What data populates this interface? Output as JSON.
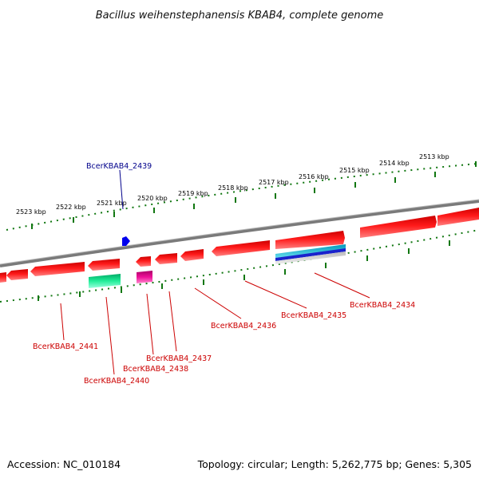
{
  "title": "Bacillus weihenstephanensis KBAB4, complete genome",
  "footer": {
    "accession": "Accession: NC_010184",
    "summary": "Topology: circular; Length: 5,262,775 bp; Genes: 5,305"
  },
  "scale": {
    "unit": "kbp",
    "tick_labels": [
      "2523 kbp",
      "2522 kbp",
      "2521 kbp",
      "2520 kbp",
      "2519 kbp",
      "2518 kbp",
      "2517 kbp",
      "2516 kbp",
      "2515 kbp",
      "2514 kbp",
      "2513 kbp"
    ]
  },
  "gene_labels": [
    {
      "name": "BcerKBAB4_2439",
      "color": "#00008b"
    },
    {
      "name": "BcerKBAB4_2441",
      "color": "#cc0000"
    },
    {
      "name": "BcerKBAB4_2440",
      "color": "#cc0000"
    },
    {
      "name": "BcerKBAB4_2438",
      "color": "#cc0000"
    },
    {
      "name": "BcerKBAB4_2437",
      "color": "#cc0000"
    },
    {
      "name": "BcerKBAB4_2436",
      "color": "#cc0000"
    },
    {
      "name": "BcerKBAB4_2435",
      "color": "#cc0000"
    },
    {
      "name": "BcerKBAB4_2434",
      "color": "#cc0000"
    }
  ],
  "colors": {
    "cds": "#ee1111",
    "trna": "#22dd99",
    "misc_rna": "#dd1188",
    "rrna": "#22aacc",
    "backbone": "#808080",
    "ticks": "#117711",
    "label_red": "#cc0000",
    "label_blue": "#00008b"
  }
}
